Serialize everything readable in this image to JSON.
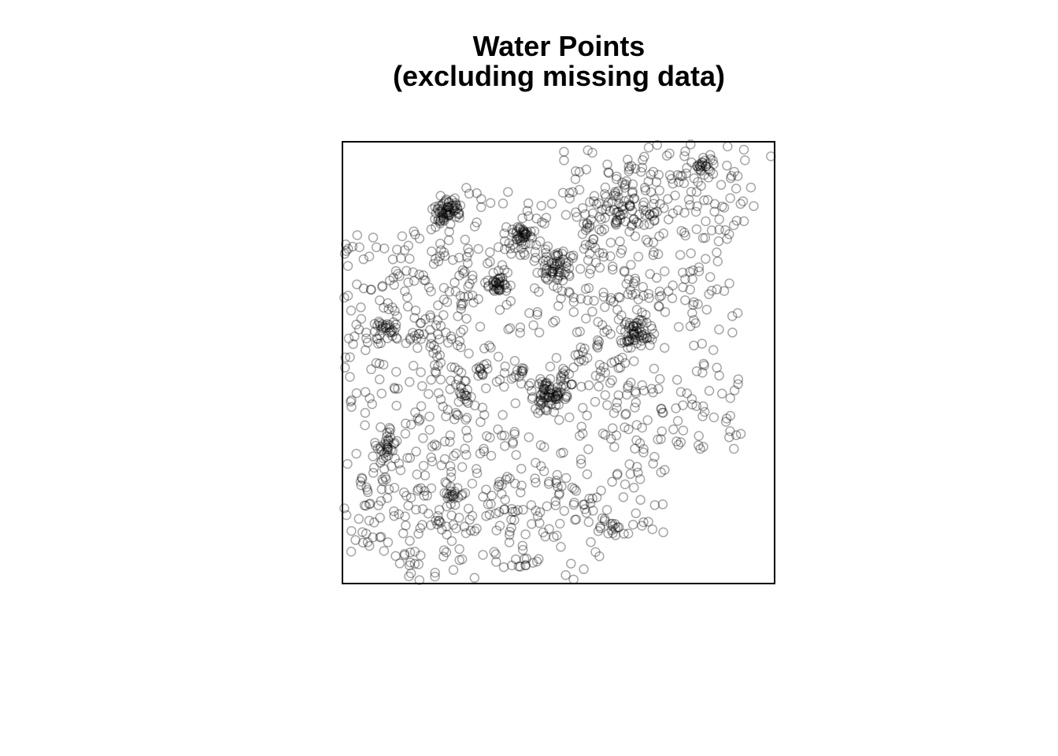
{
  "chart_data": {
    "type": "scatter",
    "title": "Water Points",
    "subtitle": "(excluding missing data)",
    "xlabel": "",
    "ylabel": "",
    "xlim": [
      0,
      100
    ],
    "ylim": [
      0,
      100
    ],
    "axes_shown": false,
    "grid": false,
    "marker": "open-circle",
    "marker_color": "#000000",
    "marker_alpha": 0.35,
    "frame": true,
    "clusters": [
      {
        "x": 24,
        "y": 85,
        "n": 60,
        "spread": 1.6
      },
      {
        "x": 41,
        "y": 79,
        "n": 45,
        "spread": 1.6
      },
      {
        "x": 49,
        "y": 72,
        "n": 60,
        "spread": 2.0
      },
      {
        "x": 36,
        "y": 68,
        "n": 35,
        "spread": 1.4
      },
      {
        "x": 10,
        "y": 58,
        "n": 30,
        "spread": 1.5
      },
      {
        "x": 68,
        "y": 57,
        "n": 50,
        "spread": 1.8
      },
      {
        "x": 48,
        "y": 42,
        "n": 70,
        "spread": 2.0
      },
      {
        "x": 10,
        "y": 31,
        "n": 30,
        "spread": 1.6
      },
      {
        "x": 62,
        "y": 85,
        "n": 30,
        "spread": 2.6
      },
      {
        "x": 84,
        "y": 95,
        "n": 20,
        "spread": 1.2
      },
      {
        "x": 28,
        "y": 42,
        "n": 12,
        "spread": 1.2
      },
      {
        "x": 32,
        "y": 48,
        "n": 12,
        "spread": 1.2
      },
      {
        "x": 17,
        "y": 56,
        "n": 10,
        "spread": 1.0
      },
      {
        "x": 25,
        "y": 20,
        "n": 10,
        "spread": 0.8
      },
      {
        "x": 63,
        "y": 12,
        "n": 8,
        "spread": 0.6
      },
      {
        "x": 41,
        "y": 48,
        "n": 8,
        "spread": 0.8
      },
      {
        "x": 51,
        "y": 47,
        "n": 8,
        "spread": 0.8
      },
      {
        "x": 55,
        "y": 52,
        "n": 6,
        "spread": 0.8
      }
    ],
    "scatter_regions": [
      {
        "x0": 0,
        "x1": 30,
        "y0": 5,
        "y1": 80,
        "n": 260
      },
      {
        "x0": 20,
        "x1": 75,
        "y0": 10,
        "y1": 90,
        "n": 420
      },
      {
        "x0": 55,
        "x1": 92,
        "y0": 30,
        "y1": 95,
        "n": 230
      },
      {
        "x0": 50,
        "x1": 95,
        "y0": 82,
        "y1": 100,
        "n": 90
      },
      {
        "x0": 5,
        "x1": 60,
        "y0": 0,
        "y1": 25,
        "n": 120
      }
    ],
    "outliers": [
      {
        "x": 99.5,
        "y": 97.2
      },
      {
        "x": 53.5,
        "y": 0.2
      },
      {
        "x": 16.5,
        "y": 3.8
      },
      {
        "x": 13,
        "y": 3.9
      },
      {
        "x": 0.5,
        "y": 75.5
      },
      {
        "x": 2,
        "y": 76.5
      },
      {
        "x": 5.1,
        "y": 17.1
      },
      {
        "x": 90,
        "y": 34.2
      },
      {
        "x": 92.5,
        "y": 33.6
      },
      {
        "x": 95.5,
        "y": 85.8
      },
      {
        "x": 93,
        "y": 86.9
      },
      {
        "x": 73,
        "y": 99.8
      },
      {
        "x": 71,
        "y": 99.2
      }
    ]
  }
}
